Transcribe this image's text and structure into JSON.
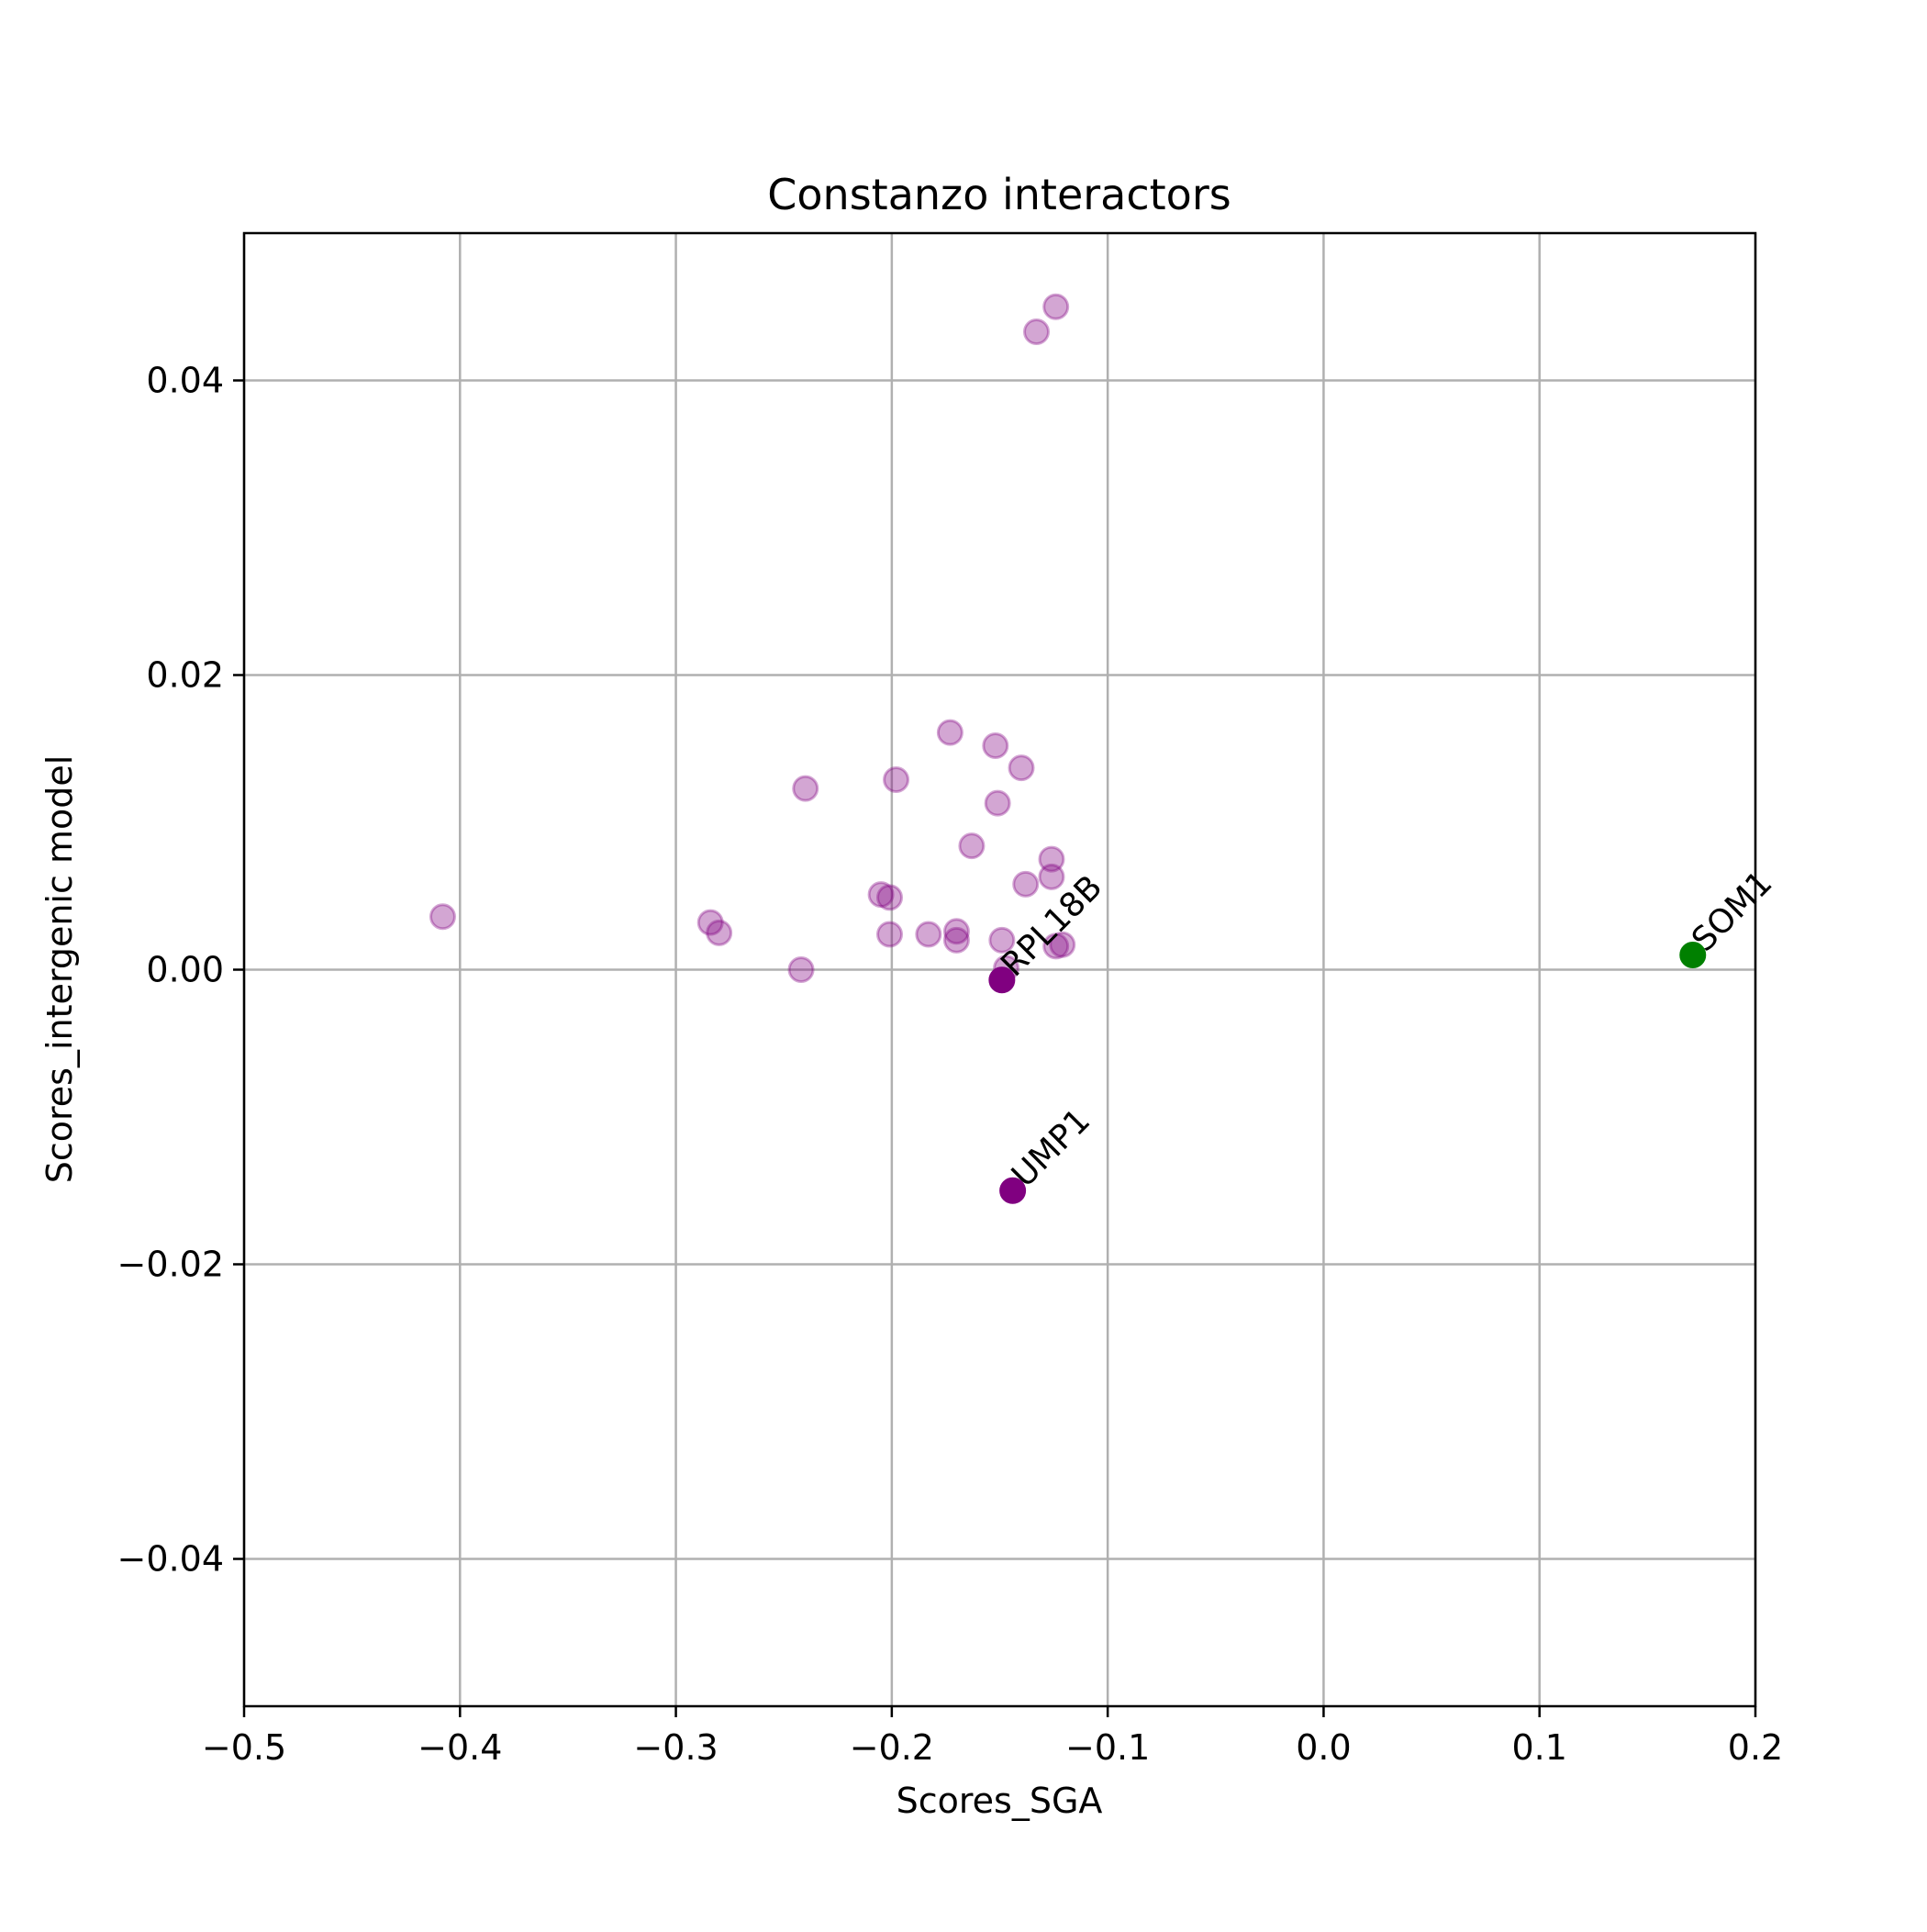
{
  "chart_data": {
    "type": "scatter",
    "title": "Constanzo interactors",
    "xlabel": "Scores_SGA",
    "ylabel": "Scores_intergenic model",
    "xlim": [
      -0.5,
      0.2
    ],
    "ylim": [
      -0.05,
      0.05
    ],
    "xticks": [
      -0.5,
      -0.4,
      -0.3,
      -0.2,
      -0.1,
      0.0,
      0.1,
      0.2
    ],
    "xtick_labels": [
      "−0.5",
      "−0.4",
      "−0.3",
      "−0.2",
      "−0.1",
      "0.0",
      "0.1",
      "0.2"
    ],
    "yticks": [
      -0.04,
      -0.02,
      0.0,
      0.02,
      0.04
    ],
    "ytick_labels": [
      "−0.04",
      "−0.02",
      "0.00",
      "0.02",
      "0.04"
    ],
    "grid": true,
    "colors": {
      "interactors": "#800080",
      "query": "#008000",
      "grid": "#b0b0b0"
    },
    "series": [
      {
        "color": "#800080",
        "alpha": 0.35,
        "points": [
          {
            "x": -0.408,
            "y": 0.0036
          },
          {
            "x": -0.284,
            "y": 0.0032
          },
          {
            "x": -0.28,
            "y": 0.0025
          },
          {
            "x": -0.242,
            "y": 0.0
          },
          {
            "x": -0.24,
            "y": 0.0123
          },
          {
            "x": -0.198,
            "y": 0.0129
          },
          {
            "x": -0.205,
            "y": 0.0051
          },
          {
            "x": -0.201,
            "y": 0.0049
          },
          {
            "x": -0.201,
            "y": 0.0024
          },
          {
            "x": -0.183,
            "y": 0.0024
          },
          {
            "x": -0.17,
            "y": 0.0026
          },
          {
            "x": -0.17,
            "y": 0.002
          },
          {
            "x": -0.173,
            "y": 0.0161
          },
          {
            "x": -0.163,
            "y": 0.0084
          },
          {
            "x": -0.152,
            "y": 0.0152
          },
          {
            "x": -0.151,
            "y": 0.0113
          },
          {
            "x": -0.149,
            "y": 0.002
          },
          {
            "x": -0.147,
            "y": 0.0001
          },
          {
            "x": -0.14,
            "y": 0.0137
          },
          {
            "x": -0.138,
            "y": 0.0058
          },
          {
            "x": -0.126,
            "y": 0.0075
          },
          {
            "x": -0.126,
            "y": 0.0063
          },
          {
            "x": -0.124,
            "y": 0.0016
          },
          {
            "x": -0.121,
            "y": 0.0017
          },
          {
            "x": -0.133,
            "y": 0.0433
          },
          {
            "x": -0.124,
            "y": 0.045
          }
        ]
      },
      {
        "color": "#800080",
        "alpha": 1.0,
        "points": [
          {
            "x": -0.149,
            "y": -0.0007,
            "label": "RPL18B"
          },
          {
            "x": -0.144,
            "y": -0.015,
            "label": "UMP1"
          }
        ]
      },
      {
        "color": "#008000",
        "alpha": 1.0,
        "points": [
          {
            "x": 0.171,
            "y": 0.001,
            "label": "SOM1"
          }
        ]
      }
    ]
  }
}
